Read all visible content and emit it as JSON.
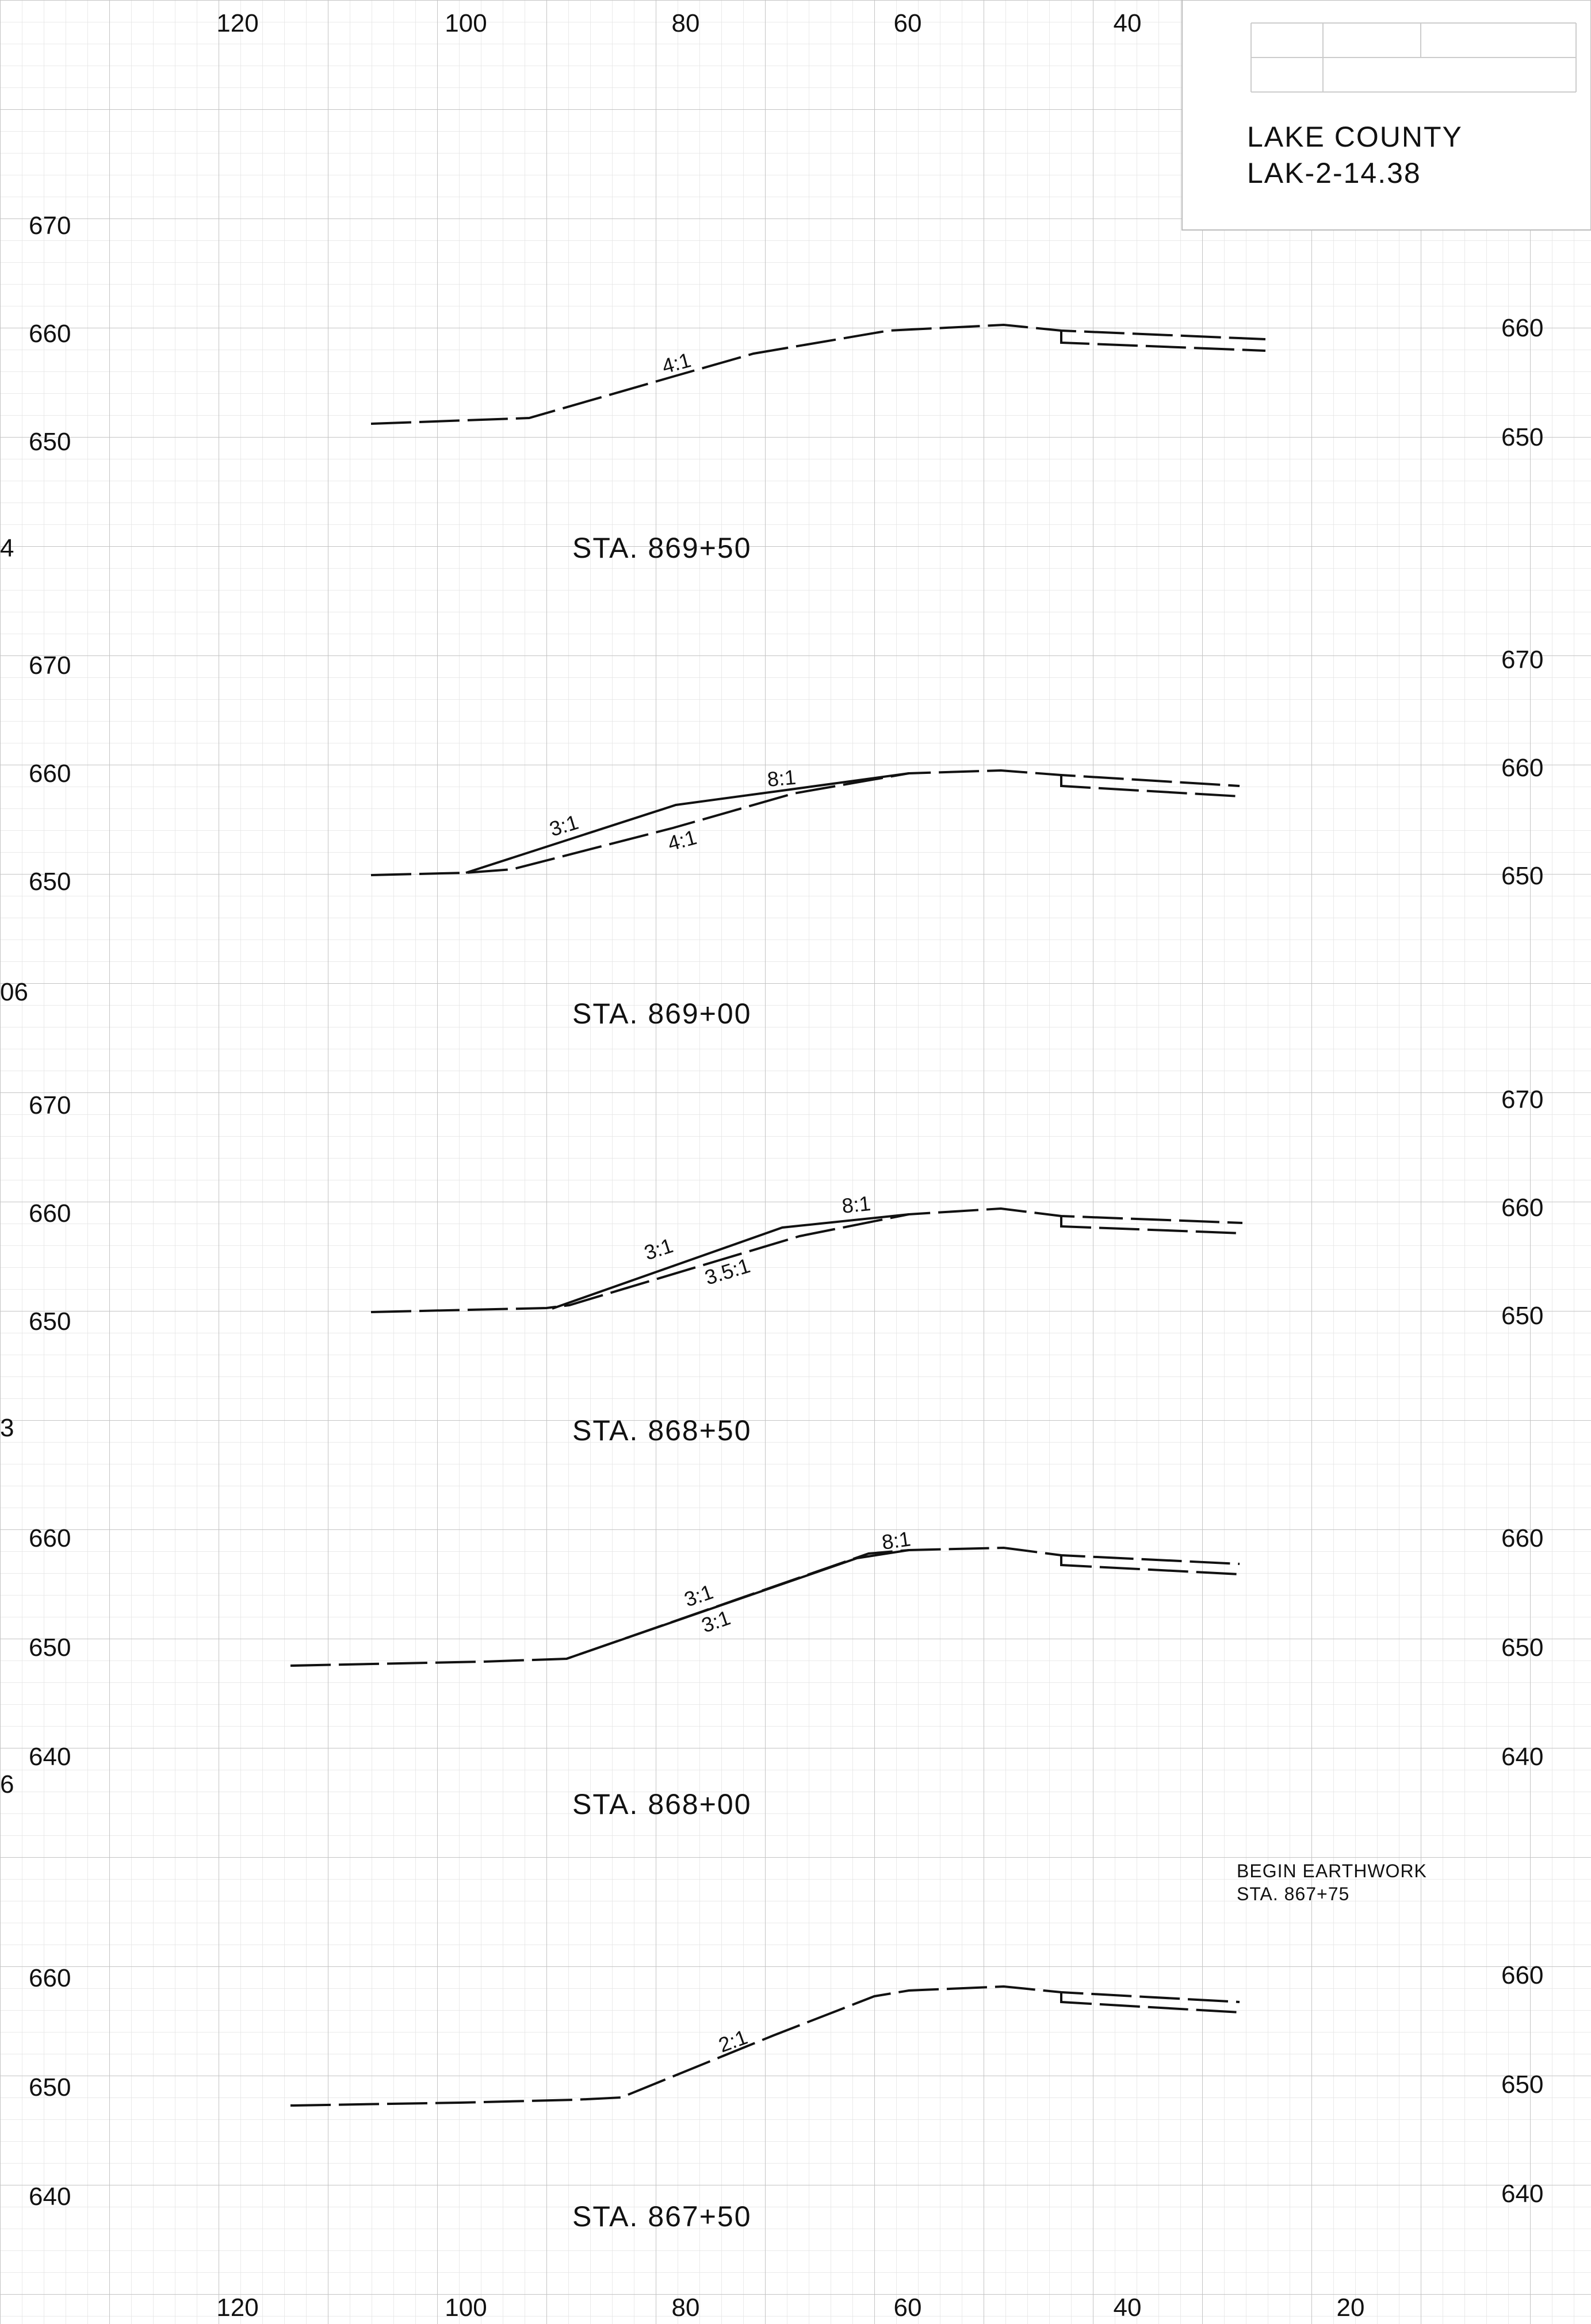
{
  "title_block": {
    "county": "LAKE COUNTY",
    "project": "LAK-2-14.38"
  },
  "axes": {
    "offset_ticks": [
      "120",
      "100",
      "80",
      "60",
      "40",
      "20"
    ],
    "offset_values": [
      120,
      100,
      80,
      60,
      40,
      20
    ]
  },
  "left_margin_fragments": [
    "4",
    "06",
    "3",
    "6"
  ],
  "note": {
    "line1": "BEGIN EARTHWORK",
    "line2": "STA. 867+75"
  },
  "sections": [
    {
      "station": "STA. 869+50",
      "elevations_left": [
        "670",
        "660",
        "650"
      ],
      "elevations_right": [
        "660",
        "650"
      ],
      "slope_labels": [
        "4:1"
      ]
    },
    {
      "station": "STA. 869+00",
      "elevations_left": [
        "670",
        "660",
        "650"
      ],
      "elevations_right": [
        "670",
        "660",
        "650"
      ],
      "slope_labels": [
        "8:1",
        "3:1",
        "4:1"
      ]
    },
    {
      "station": "STA. 868+50",
      "elevations_left": [
        "670",
        "660",
        "650"
      ],
      "elevations_right": [
        "670",
        "660",
        "650"
      ],
      "slope_labels": [
        "8:1",
        "3:1",
        "3.5:1"
      ]
    },
    {
      "station": "STA. 868+00",
      "elevations_left": [
        "660",
        "650",
        "640"
      ],
      "elevations_right": [
        "660",
        "650",
        "640"
      ],
      "slope_labels": [
        "8:1",
        "3:1",
        "3:1"
      ]
    },
    {
      "station": "STA. 867+50",
      "elevations_left": [
        "660",
        "650",
        "640"
      ],
      "elevations_right": [
        "660",
        "650",
        "640"
      ],
      "slope_labels": [
        "2:1"
      ]
    }
  ]
}
